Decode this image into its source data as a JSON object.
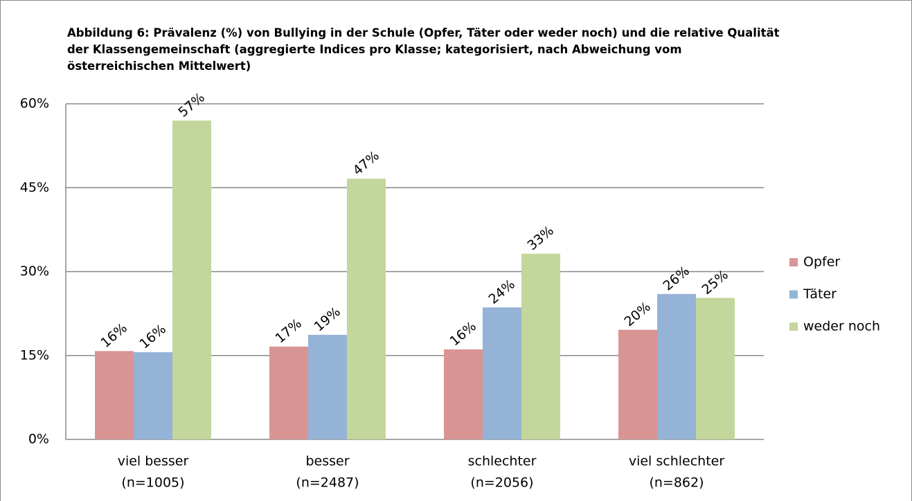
{
  "chart_data": {
    "type": "bar",
    "title": "Abbildung 6: Prävalenz (%) von Bullying in der Schule (Opfer, Täter oder weder noch) und die relative Qualität der Klassengemeinschaft (aggregierte Indices pro Klasse; kategorisiert, nach Abweichung vom österreichischen Mittelwert)",
    "categories": [
      [
        "viel besser",
        "(n=1005)"
      ],
      [
        "besser",
        "(n=2487)"
      ],
      [
        "schlechter",
        "(n=2056)"
      ],
      [
        "viel schlechter",
        "(n=862)"
      ]
    ],
    "series": [
      {
        "name": "Opfer",
        "color": "#d99594",
        "values": [
          15.8,
          16.6,
          16.1,
          19.6
        ],
        "value_labels": [
          "16%",
          "17%",
          "16%",
          "20%"
        ]
      },
      {
        "name": "Täter",
        "color": "#95b3d7",
        "values": [
          15.6,
          18.7,
          23.6,
          26.0
        ],
        "value_labels": [
          "16%",
          "19%",
          "24%",
          "26%"
        ]
      },
      {
        "name": "weder noch",
        "color": "#c3d69b",
        "values": [
          57.0,
          46.6,
          33.2,
          25.3
        ],
        "value_labels": [
          "57%",
          "47%",
          "33%",
          "25%"
        ]
      }
    ],
    "ylim": [
      0,
      60
    ],
    "yticks": [
      {
        "value": 0,
        "label": "0%"
      },
      {
        "value": 15,
        "label": "15%"
      },
      {
        "value": 30,
        "label": "30%"
      },
      {
        "value": 45,
        "label": "45%"
      },
      {
        "value": 60,
        "label": "60%"
      }
    ],
    "grid": true,
    "legend": "right"
  }
}
